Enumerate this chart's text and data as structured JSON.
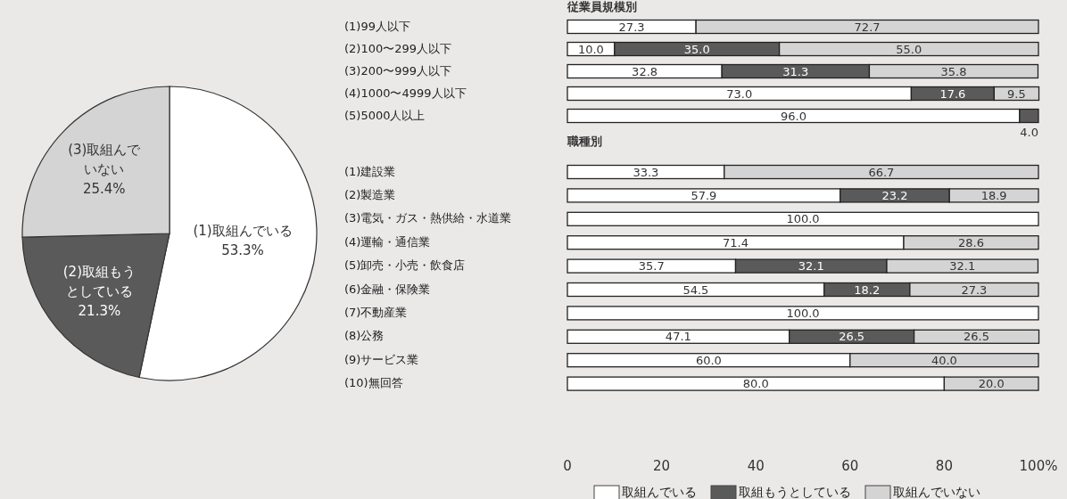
{
  "chart_data": [
    {
      "type": "pie",
      "categories": [
        "(1)取組んでいる",
        "(2)取組もうとしている",
        "(3)取組んでいない"
      ],
      "values": [
        53.3,
        21.3,
        25.4
      ],
      "colors": [
        "#ffffff",
        "#5a5a5a",
        "#d4d4d4"
      ],
      "value_labels": [
        "53.3%",
        "21.3%",
        "25.4%"
      ]
    },
    {
      "type": "bar",
      "orientation": "horizontal",
      "stacked": true,
      "title": "従業員規模別",
      "categories": [
        "(1)99人以下",
        "(2)100〜299人以下",
        "(3)200〜999人以下",
        "(4)1000〜4999人以下",
        "(5)5000人以上"
      ],
      "xlim": [
        0,
        100
      ],
      "series": [
        {
          "color": "#ffffff",
          "values": [
            27.3,
            10,
            32.8,
            73,
            96
          ],
          "value_labels": [
            "27.3",
            "10.0",
            "32.8",
            "73.0",
            "96.0"
          ]
        },
        {
          "color": "#5a5a5a",
          "values": [
            null,
            35,
            31.3,
            17.6,
            4
          ],
          "value_labels": [
            null,
            "35.0",
            "31.3",
            "17.6",
            "4.0"
          ]
        },
        {
          "color": "#d4d4d4",
          "values": [
            72.7,
            55,
            35.8,
            9.5,
            null
          ],
          "value_labels": [
            "72.7",
            "55.0",
            "35.8",
            "9.5",
            null
          ]
        }
      ]
    },
    {
      "type": "bar",
      "orientation": "horizontal",
      "stacked": true,
      "title": "職種別",
      "categories": [
        "(1)建設業",
        "(2)製造業",
        "(3)電気・ガス・熱供給・水道業",
        "(4)運輸・通信業",
        "(5)卸売・小売・飲食店",
        "(6)金融・保険業",
        "(7)不動産業",
        "(8)公務",
        "(9)サービス業",
        "(10)無回答"
      ],
      "xlim": [
        0,
        100
      ],
      "xticks": [
        0,
        20,
        40,
        60,
        80,
        {
          "value": 100,
          "label": "100%"
        }
      ],
      "legend": "bottom",
      "series": [
        {
          "name": "取組んでいる",
          "color": "#ffffff",
          "values": [
            33.3,
            57.9,
            100,
            71.4,
            35.7,
            54.5,
            100,
            47.1,
            60,
            80
          ],
          "value_labels": [
            "33.3",
            "57.9",
            "100.0",
            "71.4",
            "35.7",
            "54.5",
            "100.0",
            "47.1",
            "60.0",
            "80.0"
          ]
        },
        {
          "name": "取組もうとしている",
          "color": "#5a5a5a",
          "values": [
            null,
            23.2,
            null,
            null,
            32.1,
            18.2,
            null,
            26.5,
            null,
            null
          ],
          "value_labels": [
            null,
            "23.2",
            null,
            null,
            "32.1",
            "18.2",
            null,
            "26.5",
            null,
            null
          ]
        },
        {
          "name": "取組んでいない",
          "color": "#d4d4d4",
          "values": [
            66.7,
            18.9,
            null,
            28.6,
            32.1,
            27.3,
            null,
            26.5,
            40,
            20
          ],
          "value_labels": [
            "66.7",
            "18.9",
            null,
            "28.6",
            "32.1",
            "27.3",
            null,
            "26.5",
            "40.0",
            "20.0"
          ]
        }
      ]
    }
  ]
}
